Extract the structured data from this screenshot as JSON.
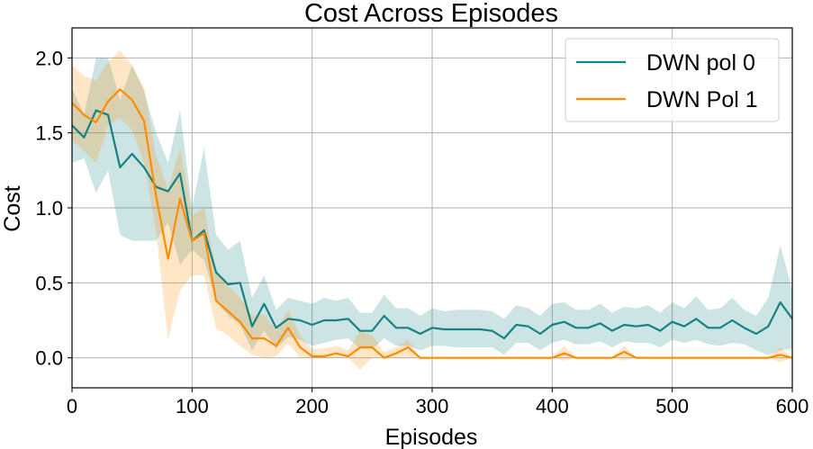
{
  "chart_data": {
    "type": "line",
    "title": "Cost Across Episodes",
    "xlabel": "Episodes",
    "ylabel": "Cost",
    "xlim": [
      0,
      600
    ],
    "ylim": [
      -0.2,
      2.2
    ],
    "xticks": [
      0,
      100,
      200,
      300,
      400,
      500,
      600
    ],
    "yticks": [
      0.0,
      0.5,
      1.0,
      1.5,
      2.0
    ],
    "xtick_labels": [
      "0",
      "100",
      "200",
      "300",
      "400",
      "500",
      "600"
    ],
    "ytick_labels": [
      "0.0",
      "0.5",
      "1.0",
      "1.5",
      "2.0"
    ],
    "grid": true,
    "legend_position": "top-right",
    "x": [
      0,
      10,
      20,
      30,
      40,
      50,
      60,
      70,
      80,
      90,
      100,
      110,
      120,
      130,
      140,
      150,
      160,
      170,
      180,
      190,
      200,
      210,
      220,
      230,
      240,
      250,
      260,
      270,
      280,
      290,
      300,
      310,
      320,
      330,
      340,
      350,
      360,
      370,
      380,
      390,
      400,
      410,
      420,
      430,
      440,
      450,
      460,
      470,
      480,
      490,
      500,
      510,
      520,
      530,
      540,
      550,
      560,
      570,
      580,
      590,
      600
    ],
    "series": [
      {
        "name": "DWN pol 0",
        "color": "#168282",
        "values": [
          1.55,
          1.47,
          1.65,
          1.62,
          1.27,
          1.36,
          1.27,
          1.14,
          1.11,
          1.23,
          0.78,
          0.85,
          0.57,
          0.49,
          0.5,
          0.21,
          0.36,
          0.2,
          0.26,
          0.25,
          0.22,
          0.25,
          0.25,
          0.26,
          0.18,
          0.18,
          0.28,
          0.2,
          0.2,
          0.16,
          0.2,
          0.19,
          0.19,
          0.19,
          0.19,
          0.18,
          0.13,
          0.22,
          0.21,
          0.16,
          0.22,
          0.24,
          0.2,
          0.2,
          0.23,
          0.18,
          0.22,
          0.21,
          0.22,
          0.18,
          0.24,
          0.21,
          0.26,
          0.2,
          0.2,
          0.25,
          0.2,
          0.16,
          0.21,
          0.37,
          0.26
        ],
        "lower": [
          1.3,
          1.33,
          1.1,
          1.25,
          0.82,
          0.78,
          0.78,
          0.78,
          0.9,
          0.62,
          0.72,
          0.65,
          0.38,
          0.28,
          0.22,
          0.05,
          0.18,
          0.06,
          0.14,
          0.12,
          0.08,
          0.1,
          0.12,
          0.13,
          0.06,
          0.06,
          0.13,
          0.08,
          0.08,
          0.05,
          0.08,
          0.08,
          0.07,
          0.07,
          0.07,
          0.07,
          0.02,
          0.1,
          0.1,
          0.05,
          0.1,
          0.12,
          0.09,
          0.09,
          0.11,
          0.07,
          0.11,
          0.1,
          0.1,
          0.07,
          0.12,
          0.1,
          0.12,
          0.09,
          0.08,
          0.1,
          0.09,
          0.05,
          0.02,
          0.05,
          0.06
        ],
        "upper": [
          1.8,
          1.62,
          2.0,
          2.0,
          1.72,
          1.95,
          1.78,
          1.5,
          1.3,
          1.65,
          1.0,
          1.4,
          0.82,
          0.72,
          0.78,
          0.4,
          0.55,
          0.32,
          0.4,
          0.38,
          0.36,
          0.4,
          0.38,
          0.4,
          0.3,
          0.3,
          0.42,
          0.33,
          0.33,
          0.28,
          0.33,
          0.31,
          0.32,
          0.32,
          0.32,
          0.31,
          0.26,
          0.35,
          0.33,
          0.28,
          0.36,
          0.37,
          0.32,
          0.32,
          0.36,
          0.3,
          0.34,
          0.33,
          0.35,
          0.3,
          0.37,
          0.33,
          0.41,
          0.32,
          0.33,
          0.4,
          0.32,
          0.28,
          0.4,
          0.75,
          0.45
        ]
      },
      {
        "name": "DWN Pol 1",
        "color": "#ff8c00",
        "values": [
          1.7,
          1.62,
          1.57,
          1.71,
          1.79,
          1.72,
          1.58,
          1.08,
          0.66,
          1.06,
          0.78,
          0.83,
          0.38,
          0.31,
          0.24,
          0.13,
          0.13,
          0.08,
          0.2,
          0.07,
          0.01,
          0.01,
          0.03,
          0.01,
          0.07,
          0.07,
          0.0,
          0.03,
          0.07,
          0.0,
          0.0,
          0.0,
          0.0,
          0.0,
          0.0,
          0.0,
          0.0,
          0.0,
          0.0,
          0.0,
          0.0,
          0.03,
          0.0,
          0.0,
          0.0,
          0.0,
          0.04,
          0.0,
          0.0,
          0.0,
          0.0,
          0.0,
          0.0,
          0.0,
          0.0,
          0.0,
          0.0,
          0.0,
          0.0,
          0.02,
          0.0
        ],
        "lower": [
          1.45,
          1.38,
          1.3,
          1.55,
          1.6,
          1.52,
          1.3,
          0.85,
          0.12,
          0.45,
          0.55,
          0.55,
          0.2,
          0.15,
          0.08,
          0.02,
          0.0,
          0.01,
          0.1,
          0.0,
          0.0,
          0.0,
          0.0,
          0.0,
          -0.08,
          0.0,
          0.0,
          0.0,
          0.0,
          0.0,
          0.0,
          0.0,
          0.0,
          0.0,
          0.0,
          0.0,
          0.0,
          0.0,
          0.0,
          0.0,
          0.0,
          -0.02,
          0.0,
          0.0,
          0.0,
          0.0,
          -0.02,
          0.0,
          0.0,
          0.0,
          0.0,
          0.0,
          0.0,
          0.0,
          0.0,
          0.0,
          0.0,
          0.0,
          0.0,
          -0.03,
          0.0
        ],
        "upper": [
          1.95,
          1.88,
          1.85,
          1.97,
          2.05,
          1.95,
          1.8,
          1.35,
          1.12,
          1.4,
          0.95,
          1.0,
          0.58,
          0.48,
          0.4,
          0.28,
          0.29,
          0.18,
          0.32,
          0.15,
          0.06,
          0.06,
          0.08,
          0.05,
          0.18,
          0.15,
          0.04,
          0.07,
          0.12,
          0.0,
          0.0,
          0.0,
          0.0,
          0.0,
          0.0,
          0.0,
          0.0,
          0.0,
          0.0,
          0.0,
          0.0,
          0.08,
          0.0,
          0.0,
          0.0,
          0.0,
          0.08,
          0.0,
          0.0,
          0.0,
          0.0,
          0.0,
          0.0,
          0.0,
          0.0,
          0.0,
          0.0,
          0.0,
          0.0,
          0.07,
          0.0
        ]
      }
    ]
  }
}
